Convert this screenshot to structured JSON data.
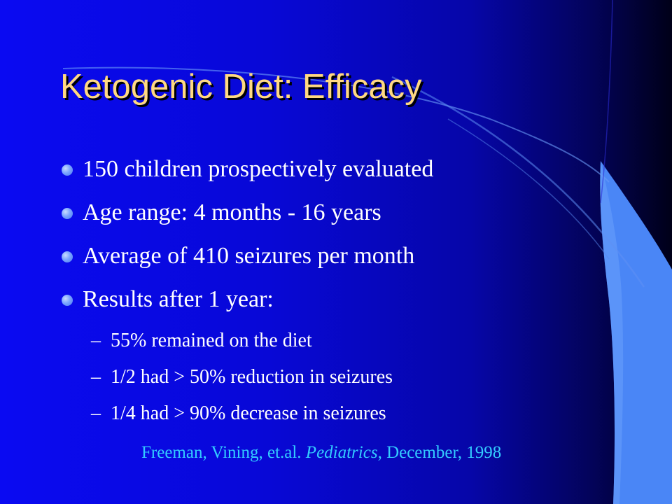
{
  "title": "Ketogenic Diet:  Efficacy",
  "bullets": [
    "150 children prospectively evaluated",
    "Age range:  4 months - 16 years",
    "Average of 410 seizures per month",
    "Results after 1 year:"
  ],
  "sub_bullets": [
    "55% remained on the diet",
    "1/2 had > 50% reduction in seizures",
    "1/4 had > 90% decrease in seizures"
  ],
  "sub_marker": "–",
  "citation": {
    "before": "Freeman, Vining, et.al. ",
    "journal": "Pediatrics",
    "after": ", December, 1998"
  },
  "colors": {
    "title": "#ffd982",
    "body_text": "#ffffff",
    "citation": "#33ccff",
    "bullet_dot": "#6a96ff",
    "swoosh": "#4a86f6"
  }
}
